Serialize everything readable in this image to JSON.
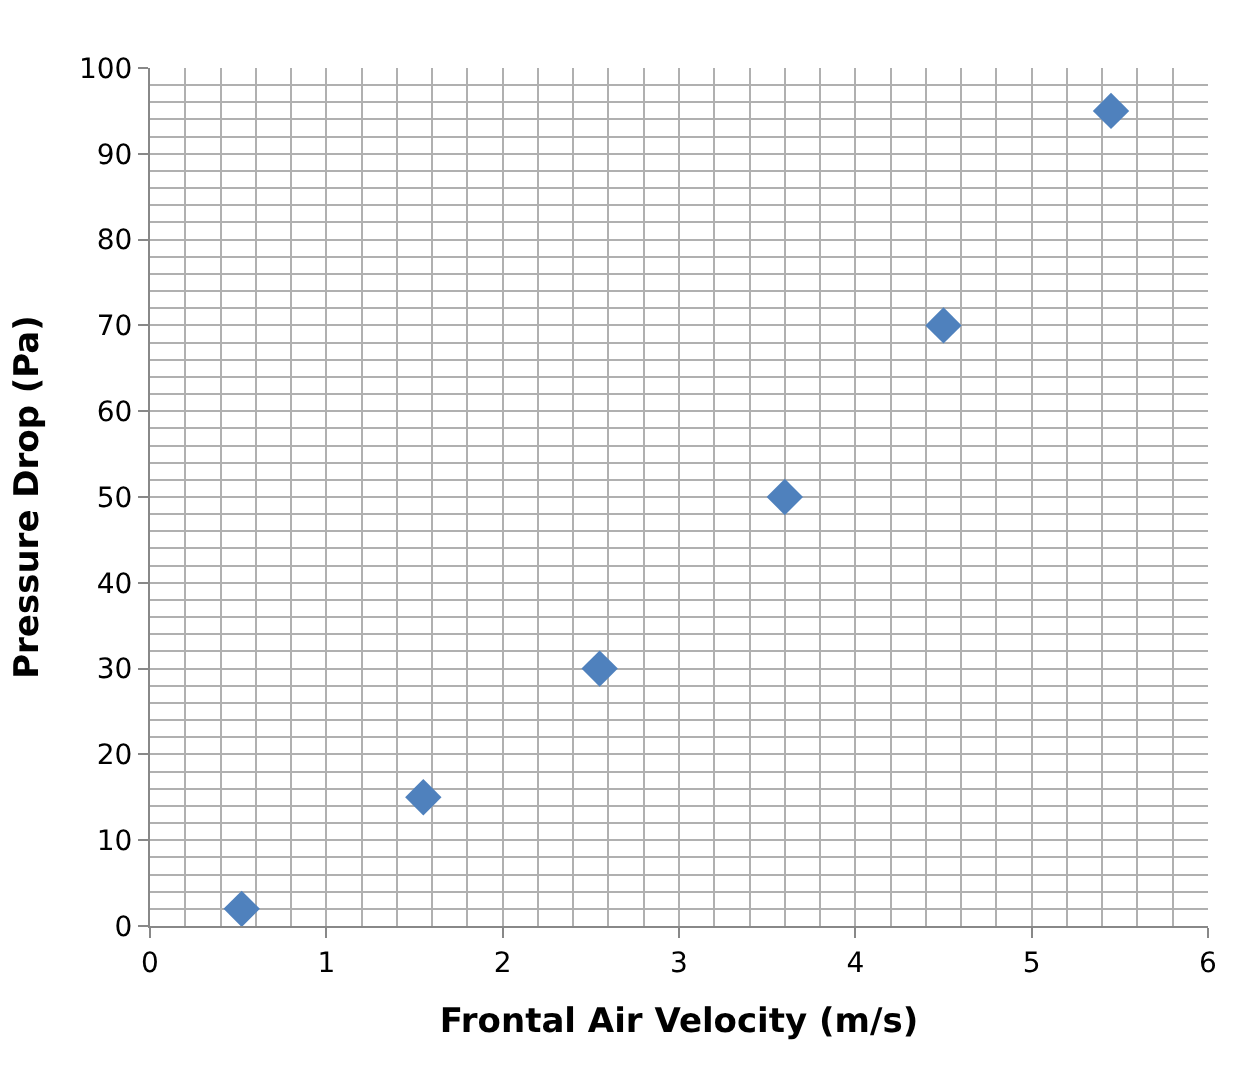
{
  "chart_data": {
    "type": "scatter",
    "xlabel": "Frontal Air Velocity (m/s)",
    "ylabel": "Pressure Drop (Pa)",
    "x": [
      0.52,
      1.55,
      2.55,
      3.6,
      4.5,
      5.45
    ],
    "series": [
      {
        "color": "#4f81bd",
        "values": [
          2,
          15,
          30,
          50,
          70,
          95
        ]
      }
    ],
    "marker": "diamond",
    "xlim": [
      0,
      6
    ],
    "xticks": [
      0,
      1,
      2,
      3,
      4,
      5,
      6
    ],
    "ylim": [
      0,
      100
    ],
    "yticks": [
      0,
      10,
      20,
      30,
      40,
      50,
      60,
      70,
      80,
      90,
      100
    ],
    "grid": true,
    "legend": false
  }
}
